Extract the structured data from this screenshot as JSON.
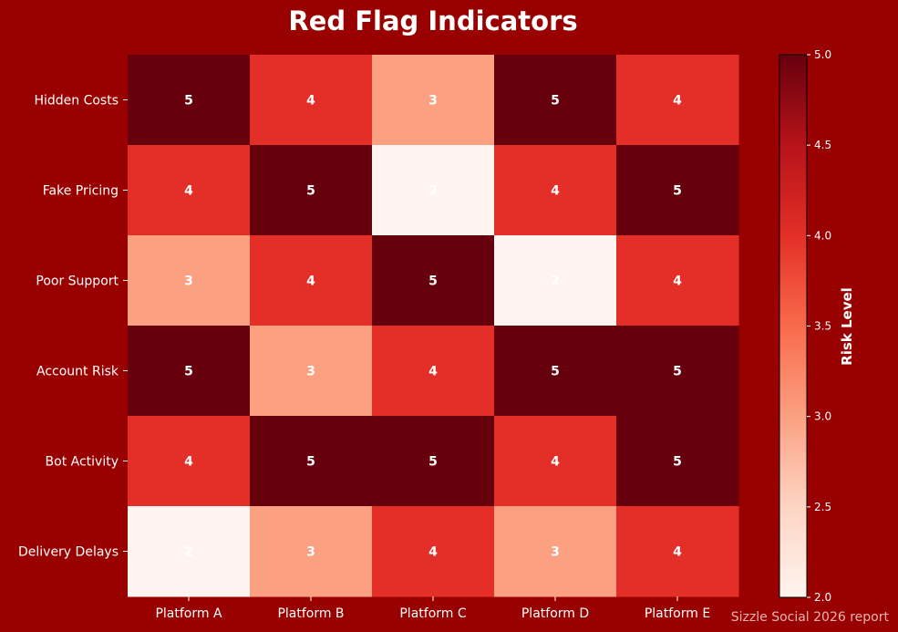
{
  "chart_data": {
    "type": "heatmap",
    "title": "Red Flag Indicators",
    "rows": [
      "Hidden Costs",
      "Fake Pricing",
      "Poor Support",
      "Account Risk",
      "Bot Activity",
      "Delivery Delays"
    ],
    "columns": [
      "Platform A",
      "Platform B",
      "Platform C",
      "Platform D",
      "Platform E"
    ],
    "values": [
      [
        5,
        4,
        3,
        5,
        4
      ],
      [
        4,
        5,
        2,
        4,
        5
      ],
      [
        3,
        4,
        5,
        2,
        4
      ],
      [
        5,
        3,
        4,
        5,
        5
      ],
      [
        4,
        5,
        5,
        4,
        5
      ],
      [
        2,
        3,
        4,
        3,
        4
      ]
    ],
    "colorbar": {
      "label": "Risk Level",
      "min": 2.0,
      "max": 5.0,
      "ticks": [
        "2.0",
        "2.5",
        "3.0",
        "3.5",
        "4.0",
        "4.5",
        "5.0"
      ],
      "colors": {
        "2": "#fff4ef",
        "3": "#fca082",
        "4": "#e32f27",
        "5": "#67000d"
      }
    }
  },
  "footer": "Sizzle Social 2026 report",
  "colors": {
    "background": "#990000"
  }
}
